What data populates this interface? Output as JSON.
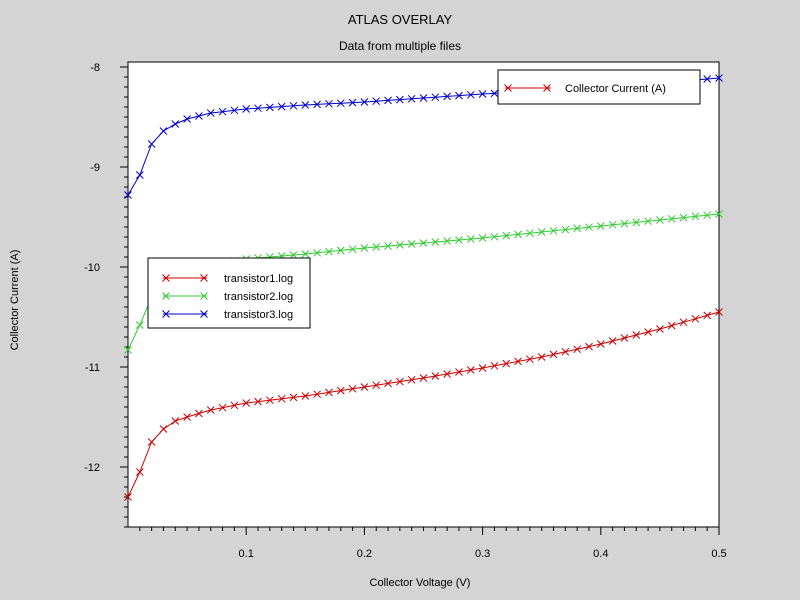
{
  "chart_data": {
    "type": "line",
    "title": "ATLAS OVERLAY",
    "subtitle": "Data from multiple files",
    "xlabel": "Collector Voltage (V)",
    "ylabel": "Collector Current (A)",
    "xlim": [
      0.0,
      0.5
    ],
    "ylim": [
      -12.6,
      -7.95
    ],
    "xticks": [
      0.1,
      0.2,
      0.3,
      0.4,
      0.5
    ],
    "xtick_labels": [
      "0.1",
      "0.2",
      "0.3",
      "0.4",
      "0.5"
    ],
    "yticks": [
      -8,
      -9,
      -10,
      -11,
      -12
    ],
    "ytick_labels": [
      "-8",
      "-9",
      "-10",
      "-11",
      "-12"
    ],
    "grid": false,
    "quantity_legend": {
      "label": "Collector Current (A)",
      "placement": "top-right",
      "color": "#cc0000"
    },
    "legend_placement": "left-middle",
    "marker": "x",
    "series": [
      {
        "name": "transistor1.log",
        "color": "#cc0000",
        "x": [
          0.0,
          0.01,
          0.02,
          0.03,
          0.04,
          0.05,
          0.07,
          0.1,
          0.15,
          0.2,
          0.25,
          0.3,
          0.35,
          0.4,
          0.45,
          0.5
        ],
        "y": [
          -12.3,
          -12.05,
          -11.75,
          -11.62,
          -11.54,
          -11.5,
          -11.43,
          -11.36,
          -11.29,
          -11.2,
          -11.11,
          -11.01,
          -10.9,
          -10.77,
          -10.62,
          -10.45
        ]
      },
      {
        "name": "transistor2.log",
        "color": "#33cc33",
        "x": [
          0.0,
          0.01,
          0.02,
          0.03,
          0.04,
          0.05,
          0.07,
          0.1,
          0.15,
          0.2,
          0.25,
          0.3,
          0.35,
          0.4,
          0.45,
          0.5
        ],
        "y": [
          -10.83,
          -10.58,
          -10.3,
          -10.17,
          -10.09,
          -10.03,
          -9.97,
          -9.92,
          -9.87,
          -9.81,
          -9.76,
          -9.71,
          -9.65,
          -9.59,
          -9.53,
          -9.47
        ]
      },
      {
        "name": "transistor3.log",
        "color": "#0000cc",
        "x": [
          0.0,
          0.01,
          0.02,
          0.03,
          0.04,
          0.05,
          0.07,
          0.1,
          0.15,
          0.2,
          0.25,
          0.3,
          0.35,
          0.4,
          0.45,
          0.5
        ],
        "y": [
          -9.28,
          -9.08,
          -8.77,
          -8.64,
          -8.57,
          -8.52,
          -8.46,
          -8.42,
          -8.38,
          -8.35,
          -8.31,
          -8.27,
          -8.24,
          -8.2,
          -8.16,
          -8.11
        ]
      }
    ]
  }
}
